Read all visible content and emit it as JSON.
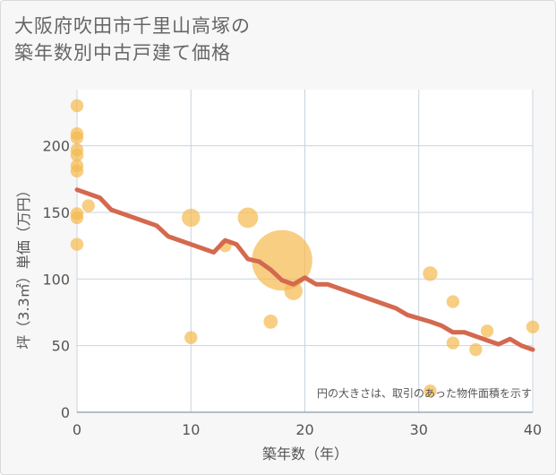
{
  "title_line1": "大阪府吹田市千里山高塚の",
  "title_line2": "築年数別中古戸建て価格",
  "note": "円の大きさは、取引のあった物件面積を示す",
  "chart_data": {
    "type": "scatter",
    "xlabel": "築年数（年）",
    "ylabel": "坪（3.3㎡）単価（万円）",
    "xlim": [
      0,
      40
    ],
    "ylim": [
      0,
      230
    ],
    "xticks": [
      0,
      10,
      20,
      30,
      40
    ],
    "yticks": [
      0,
      50,
      100,
      150,
      200
    ],
    "grid": true,
    "colors": {
      "bubble": "#f5b94f",
      "line": "#d4694f",
      "grid": "#c8d4de"
    },
    "points": [
      {
        "x": 0,
        "y": 230,
        "size": 1
      },
      {
        "x": 0,
        "y": 209,
        "size": 1
      },
      {
        "x": 0,
        "y": 206,
        "size": 1
      },
      {
        "x": 0,
        "y": 197,
        "size": 1
      },
      {
        "x": 0,
        "y": 193,
        "size": 1
      },
      {
        "x": 0,
        "y": 185,
        "size": 1
      },
      {
        "x": 0,
        "y": 181,
        "size": 1
      },
      {
        "x": 0,
        "y": 149,
        "size": 1
      },
      {
        "x": 0,
        "y": 146,
        "size": 1
      },
      {
        "x": 0,
        "y": 126,
        "size": 1
      },
      {
        "x": 1,
        "y": 155,
        "size": 1
      },
      {
        "x": 10,
        "y": 146,
        "size": 2
      },
      {
        "x": 10,
        "y": 56,
        "size": 1
      },
      {
        "x": 13,
        "y": 125,
        "size": 1
      },
      {
        "x": 15,
        "y": 146,
        "size": 2.5
      },
      {
        "x": 17,
        "y": 68,
        "size": 1.2
      },
      {
        "x": 18,
        "y": 114,
        "size": 22
      },
      {
        "x": 19,
        "y": 91,
        "size": 2
      },
      {
        "x": 31,
        "y": 104,
        "size": 1.3
      },
      {
        "x": 31,
        "y": 16,
        "size": 1
      },
      {
        "x": 33,
        "y": 83,
        "size": 1
      },
      {
        "x": 33,
        "y": 52,
        "size": 1
      },
      {
        "x": 35,
        "y": 47,
        "size": 1
      },
      {
        "x": 36,
        "y": 61,
        "size": 1
      },
      {
        "x": 40,
        "y": 64,
        "size": 1
      }
    ],
    "trend": {
      "x": [
        0,
        2,
        3,
        5,
        7,
        8,
        10,
        12,
        13,
        14,
        15,
        16,
        17,
        18,
        19,
        20,
        21,
        22,
        25,
        28,
        29,
        31,
        32,
        33,
        34,
        35,
        36,
        37,
        38,
        39,
        40
      ],
      "y": [
        167,
        161,
        152,
        146,
        140,
        132,
        126,
        120,
        129,
        126,
        115,
        113,
        107,
        99,
        96,
        101,
        96,
        96,
        87,
        78,
        73,
        68,
        65,
        60,
        60,
        57,
        54,
        51,
        55,
        50,
        47
      ]
    }
  }
}
